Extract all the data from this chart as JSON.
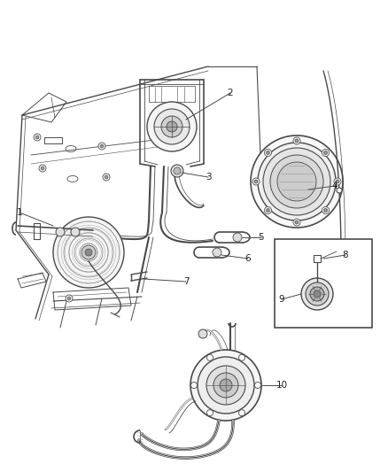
{
  "bg_color": "#ffffff",
  "line_color": "#4a4a4a",
  "med_color": "#666666",
  "light_color": "#999999",
  "fig_width": 4.38,
  "fig_height": 5.33,
  "dpi": 100
}
